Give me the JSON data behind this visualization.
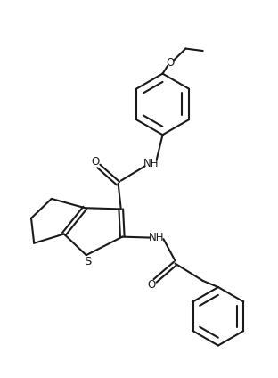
{
  "bg_color": "#ffffff",
  "line_color": "#1a1a1a",
  "line_width": 1.5,
  "font_size": 8.5,
  "fig_width": 3.12,
  "fig_height": 4.24,
  "dpi": 100,
  "xlim": [
    0,
    10
  ],
  "ylim": [
    0,
    13.6
  ]
}
